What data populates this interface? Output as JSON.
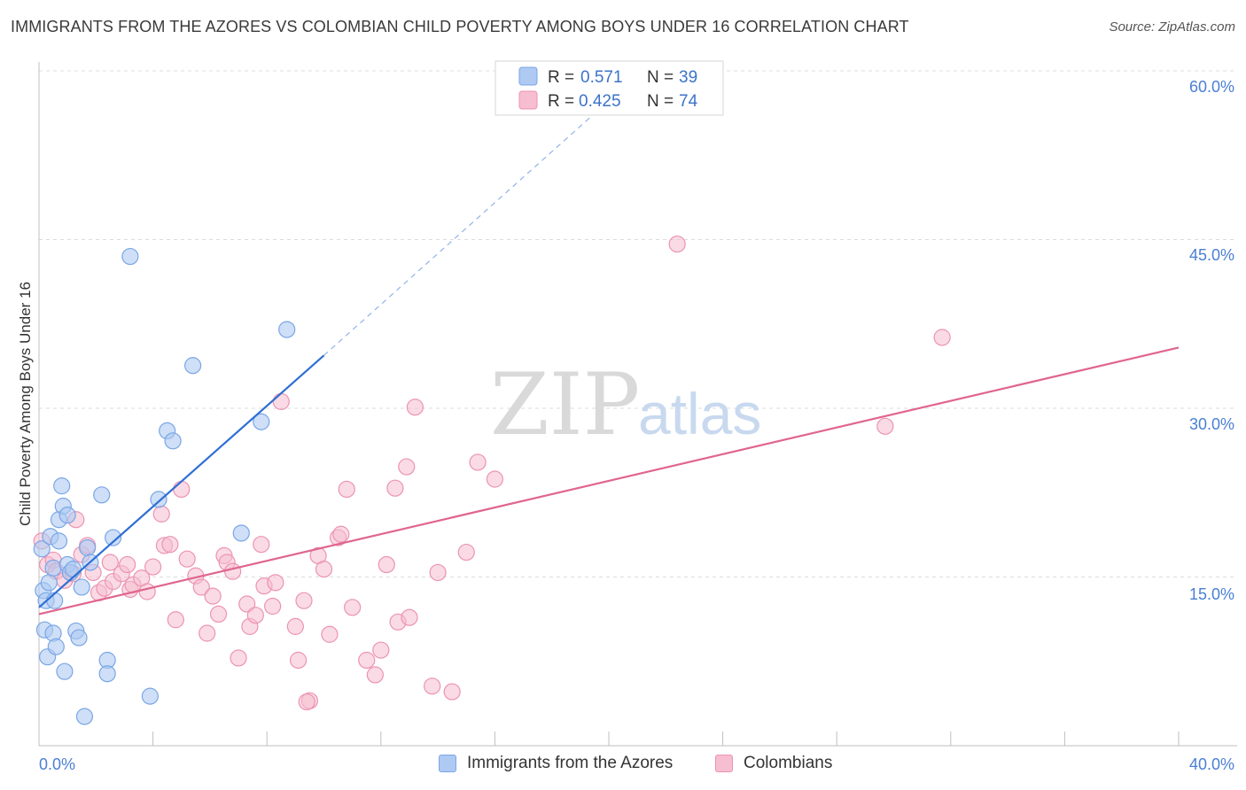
{
  "header": {
    "title": "IMMIGRANTS FROM THE AZORES VS COLOMBIAN CHILD POVERTY AMONG BOYS UNDER 16 CORRELATION CHART",
    "source": "Source: ZipAtlas.com"
  },
  "watermark": {
    "zip": "ZIP",
    "atlas": "atlas"
  },
  "legend_box": {
    "rows": [
      {
        "r_label": "R = ",
        "r_value": "0.571",
        "n_label": "N = ",
        "n_value": "39"
      },
      {
        "r_label": "R = ",
        "r_value": "0.425",
        "n_label": "N = ",
        "n_value": "74"
      }
    ]
  },
  "bottom_legend": {
    "items": [
      {
        "label": "Immigrants from the Azores"
      },
      {
        "label": "Colombians"
      }
    ]
  },
  "chart_data": {
    "type": "scatter",
    "ylabel": "Child Poverty Among Boys Under 16",
    "xlim": [
      0,
      40
    ],
    "ylim": [
      0,
      60
    ],
    "x_tick_labels": [
      "0.0%",
      "40.0%"
    ],
    "y_ticks": [
      15,
      30,
      45,
      60
    ],
    "y_tick_labels": [
      "15.0%",
      "30.0%",
      "45.0%",
      "60.0%"
    ],
    "grid": true,
    "legend_position": "top-center",
    "colors": {
      "azores_fill": "#aec9f2",
      "azores_stroke": "#7aa6e6",
      "azores_line": "#2f6fd4",
      "colombians_fill": "#f6bed0",
      "colombians_stroke": "#ec93b2",
      "colombians_line": "#e0658f"
    },
    "series": [
      {
        "name": "Immigrants from the Azores",
        "r": 0.571,
        "n": 39,
        "trend": {
          "x0": 0,
          "y0": 12.3,
          "x1": 10,
          "y1": 34.7,
          "dash_x1": 20.6,
          "dash_y1": 58.7
        },
        "points": [
          [
            0.1,
            17.5
          ],
          [
            0.15,
            13.8
          ],
          [
            0.2,
            10.3
          ],
          [
            0.25,
            12.9
          ],
          [
            0.3,
            7.9
          ],
          [
            0.35,
            14.5
          ],
          [
            0.4,
            18.6
          ],
          [
            0.5,
            10.0
          ],
          [
            0.5,
            15.8
          ],
          [
            0.55,
            12.9
          ],
          [
            0.6,
            8.8
          ],
          [
            0.7,
            18.2
          ],
          [
            0.7,
            20.1
          ],
          [
            0.8,
            23.1
          ],
          [
            0.85,
            21.3
          ],
          [
            0.9,
            6.6
          ],
          [
            1.0,
            16.1
          ],
          [
            1.0,
            20.5
          ],
          [
            1.1,
            15.4
          ],
          [
            1.2,
            15.7
          ],
          [
            1.3,
            10.2
          ],
          [
            1.4,
            9.6
          ],
          [
            1.5,
            14.1
          ],
          [
            1.7,
            17.6
          ],
          [
            1.8,
            16.3
          ],
          [
            2.2,
            22.3
          ],
          [
            2.4,
            7.6
          ],
          [
            2.4,
            6.4
          ],
          [
            2.6,
            18.5
          ],
          [
            3.2,
            43.5
          ],
          [
            3.9,
            4.4
          ],
          [
            4.2,
            21.9
          ],
          [
            4.5,
            28.0
          ],
          [
            4.7,
            27.1
          ],
          [
            5.4,
            33.8
          ],
          [
            7.1,
            18.9
          ],
          [
            7.8,
            28.8
          ],
          [
            8.7,
            37.0
          ],
          [
            1.6,
            2.6
          ]
        ]
      },
      {
        "name": "Colombians",
        "r": 0.425,
        "n": 74,
        "trend": {
          "x0": 0,
          "y0": 11.7,
          "x1": 40,
          "y1": 35.4
        },
        "points": [
          [
            0.1,
            18.2
          ],
          [
            0.3,
            16.1
          ],
          [
            0.5,
            16.5
          ],
          [
            0.6,
            15.5
          ],
          [
            0.9,
            14.7
          ],
          [
            1.2,
            15.3
          ],
          [
            1.3,
            20.1
          ],
          [
            1.5,
            17.0
          ],
          [
            1.7,
            17.8
          ],
          [
            1.9,
            15.4
          ],
          [
            2.1,
            13.6
          ],
          [
            2.3,
            14.0
          ],
          [
            2.5,
            16.3
          ],
          [
            2.6,
            14.6
          ],
          [
            2.9,
            15.3
          ],
          [
            3.1,
            16.1
          ],
          [
            3.2,
            13.9
          ],
          [
            3.3,
            14.3
          ],
          [
            3.6,
            14.9
          ],
          [
            3.8,
            13.7
          ],
          [
            4.0,
            15.9
          ],
          [
            4.3,
            20.6
          ],
          [
            4.4,
            17.8
          ],
          [
            4.6,
            17.9
          ],
          [
            4.8,
            11.2
          ],
          [
            5.0,
            22.8
          ],
          [
            5.2,
            16.6
          ],
          [
            5.5,
            15.1
          ],
          [
            5.7,
            14.1
          ],
          [
            5.9,
            10.0
          ],
          [
            6.1,
            13.3
          ],
          [
            6.3,
            11.7
          ],
          [
            6.5,
            16.9
          ],
          [
            6.6,
            16.3
          ],
          [
            6.8,
            15.5
          ],
          [
            7.0,
            7.8
          ],
          [
            7.3,
            12.6
          ],
          [
            7.4,
            10.6
          ],
          [
            7.6,
            11.6
          ],
          [
            7.8,
            17.9
          ],
          [
            7.9,
            14.2
          ],
          [
            8.2,
            12.4
          ],
          [
            8.3,
            14.5
          ],
          [
            8.5,
            30.6
          ],
          [
            9.0,
            10.6
          ],
          [
            9.1,
            7.6
          ],
          [
            9.3,
            12.9
          ],
          [
            9.5,
            4.0
          ],
          [
            9.8,
            16.9
          ],
          [
            10.0,
            15.7
          ],
          [
            10.2,
            9.9
          ],
          [
            10.5,
            18.5
          ],
          [
            10.6,
            18.8
          ],
          [
            10.8,
            22.8
          ],
          [
            11.0,
            12.3
          ],
          [
            11.5,
            7.6
          ],
          [
            11.8,
            6.3
          ],
          [
            12.0,
            8.5
          ],
          [
            12.2,
            16.1
          ],
          [
            12.5,
            22.9
          ],
          [
            12.6,
            11.0
          ],
          [
            12.9,
            24.8
          ],
          [
            13.0,
            11.4
          ],
          [
            13.2,
            30.1
          ],
          [
            13.8,
            5.3
          ],
          [
            14.0,
            15.4
          ],
          [
            14.5,
            4.8
          ],
          [
            15.0,
            17.2
          ],
          [
            15.4,
            25.2
          ],
          [
            16.0,
            23.7
          ],
          [
            22.4,
            44.6
          ],
          [
            29.7,
            28.4
          ],
          [
            31.7,
            36.3
          ],
          [
            9.4,
            3.9
          ]
        ]
      }
    ]
  }
}
